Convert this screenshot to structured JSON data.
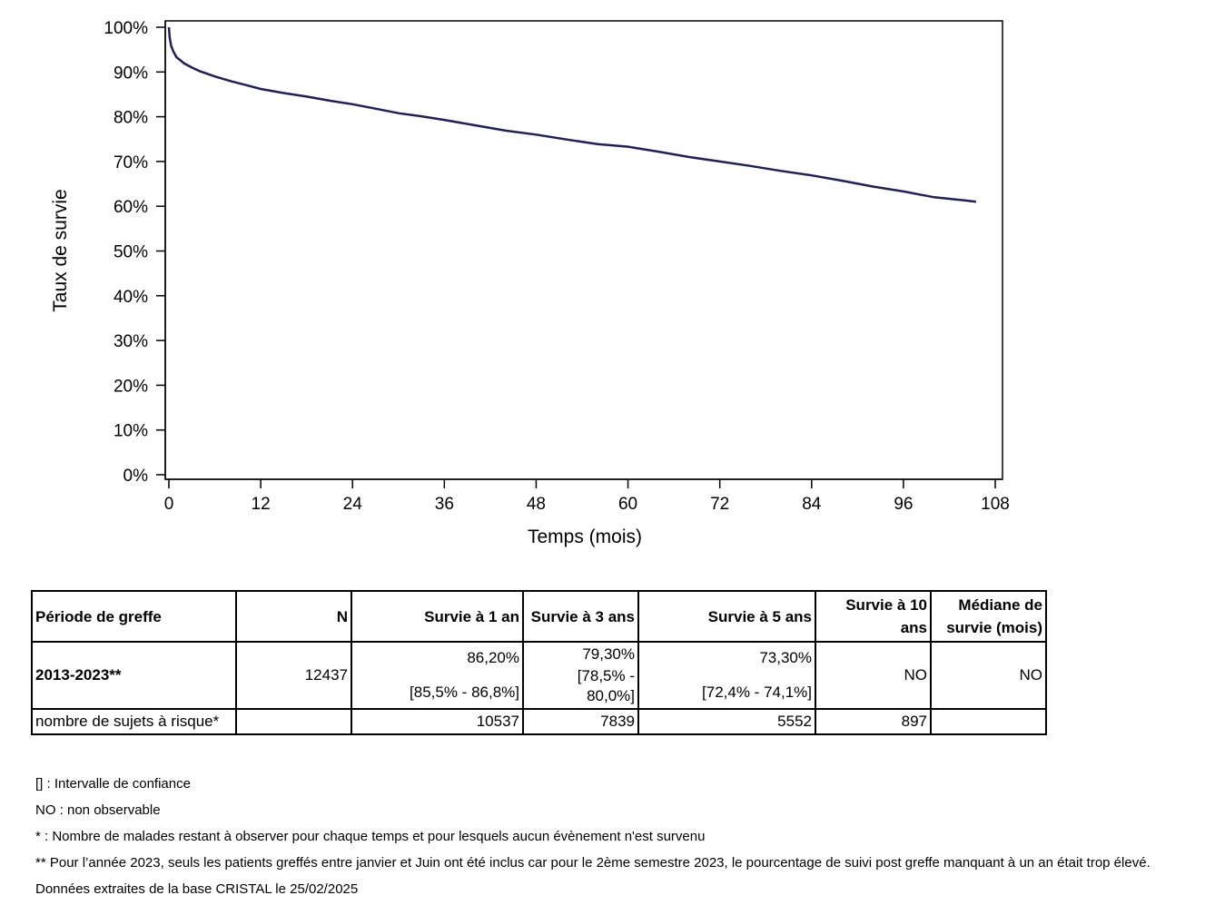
{
  "chart_data": {
    "type": "line",
    "xlabel": "Temps (mois)",
    "ylabel": "Taux de survie",
    "xlim": [
      0,
      108
    ],
    "ylim": [
      0,
      100
    ],
    "x_ticks": [
      "0",
      "12",
      "24",
      "36",
      "48",
      "60",
      "72",
      "84",
      "96",
      "108"
    ],
    "y_ticks": [
      "0%",
      "10%",
      "20%",
      "30%",
      "40%",
      "50%",
      "60%",
      "70%",
      "80%",
      "90%",
      "100%"
    ],
    "grid": false,
    "line_color": "#1f1f5e",
    "series": [
      {
        "x": [
          0,
          0.1,
          0.3,
          0.6,
          1,
          2,
          3,
          4,
          6,
          8,
          10,
          12,
          15,
          18,
          21,
          24,
          27,
          30,
          33,
          36,
          40,
          44,
          48,
          52,
          56,
          60,
          64,
          68,
          72,
          76,
          80,
          84,
          88,
          92,
          96,
          100,
          104,
          105.5
        ],
        "y": [
          100,
          97.8,
          95.8,
          94.5,
          93.3,
          91.9,
          91.0,
          90.2,
          89.0,
          88.0,
          87.1,
          86.2,
          85.3,
          84.5,
          83.6,
          82.8,
          81.8,
          80.8,
          80.1,
          79.3,
          78.1,
          76.9,
          76.0,
          74.9,
          73.9,
          73.3,
          72.2,
          71.0,
          70.0,
          69.0,
          67.9,
          66.9,
          65.7,
          64.4,
          63.3,
          62.0,
          61.3,
          61.0
        ]
      }
    ]
  },
  "table": {
    "headers": [
      "Période de greffe",
      "N",
      "Survie à 1 an",
      "Survie à 3 ans",
      "Survie à 5 ans",
      "Survie à 10 ans",
      "Médiane de survie (mois)"
    ],
    "row1": {
      "period": "2013-2023**",
      "n": "12437",
      "s1_value": "86,20%",
      "s1_ci": "[85,5% - 86,8%]",
      "s3_value": "79,30%",
      "s3_ci": "[78,5% - 80,0%]",
      "s5_value": "73,30%",
      "s5_ci": "[72,4% - 74,1%]",
      "s10": "NO",
      "median": "NO"
    },
    "row2": {
      "label": "nombre de sujets à risque*",
      "n": "",
      "s1": "10537",
      "s3": "7839",
      "s5": "5552",
      "s10": "897",
      "median": ""
    }
  },
  "notes": [
    "[] : Intervalle de confiance",
    "NO : non observable",
    "* : Nombre de malades restant à observer pour chaque temps et pour lesquels aucun évènement n'est survenu",
    "** Pour l’année 2023, seuls les patients greffés entre janvier et Juin ont été inclus car pour le 2ème semestre 2023, le pourcentage de suivi post greffe manquant à un an était trop élevé.",
    "Données extraites de la base CRISTAL le 25/02/2025"
  ]
}
